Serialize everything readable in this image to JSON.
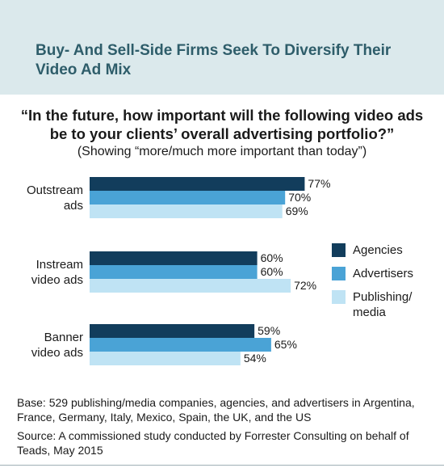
{
  "header": {
    "title": "Buy- And Sell-Side Firms Seek To Diversify Their\nVideo Ad Mix"
  },
  "question": "“In the future, how important will the following video ads\nbe to your clients’ overall advertising portfolio?”",
  "subquestion": "(Showing “more/much more important than today”)",
  "chart_data": {
    "type": "bar",
    "orientation": "horizontal",
    "categories": [
      "Outstream\nads",
      "Instream\nvideo ads",
      "Banner\nvideo ads"
    ],
    "series": [
      {
        "name": "Agencies",
        "values": [
          77,
          60,
          59
        ],
        "color": "#123d5c"
      },
      {
        "name": "Advertisers",
        "values": [
          70,
          60,
          65
        ],
        "color": "#4aa3d6"
      },
      {
        "name": "Publishing/\nmedia",
        "values": [
          69,
          72,
          54
        ],
        "color": "#bfe3f4"
      }
    ],
    "value_suffix": "%",
    "xlim": [
      0,
      100
    ],
    "grid": false,
    "legend_position": "right"
  },
  "notes": {
    "base": "Base: 529 publishing/media companies, agencies, and advertisers in Argentina, France, Germany, Italy, Mexico, Spain, the UK, and the US",
    "source": "Source: A commissioned study conducted by Forrester Consulting on behalf of Teads, May 2015"
  }
}
